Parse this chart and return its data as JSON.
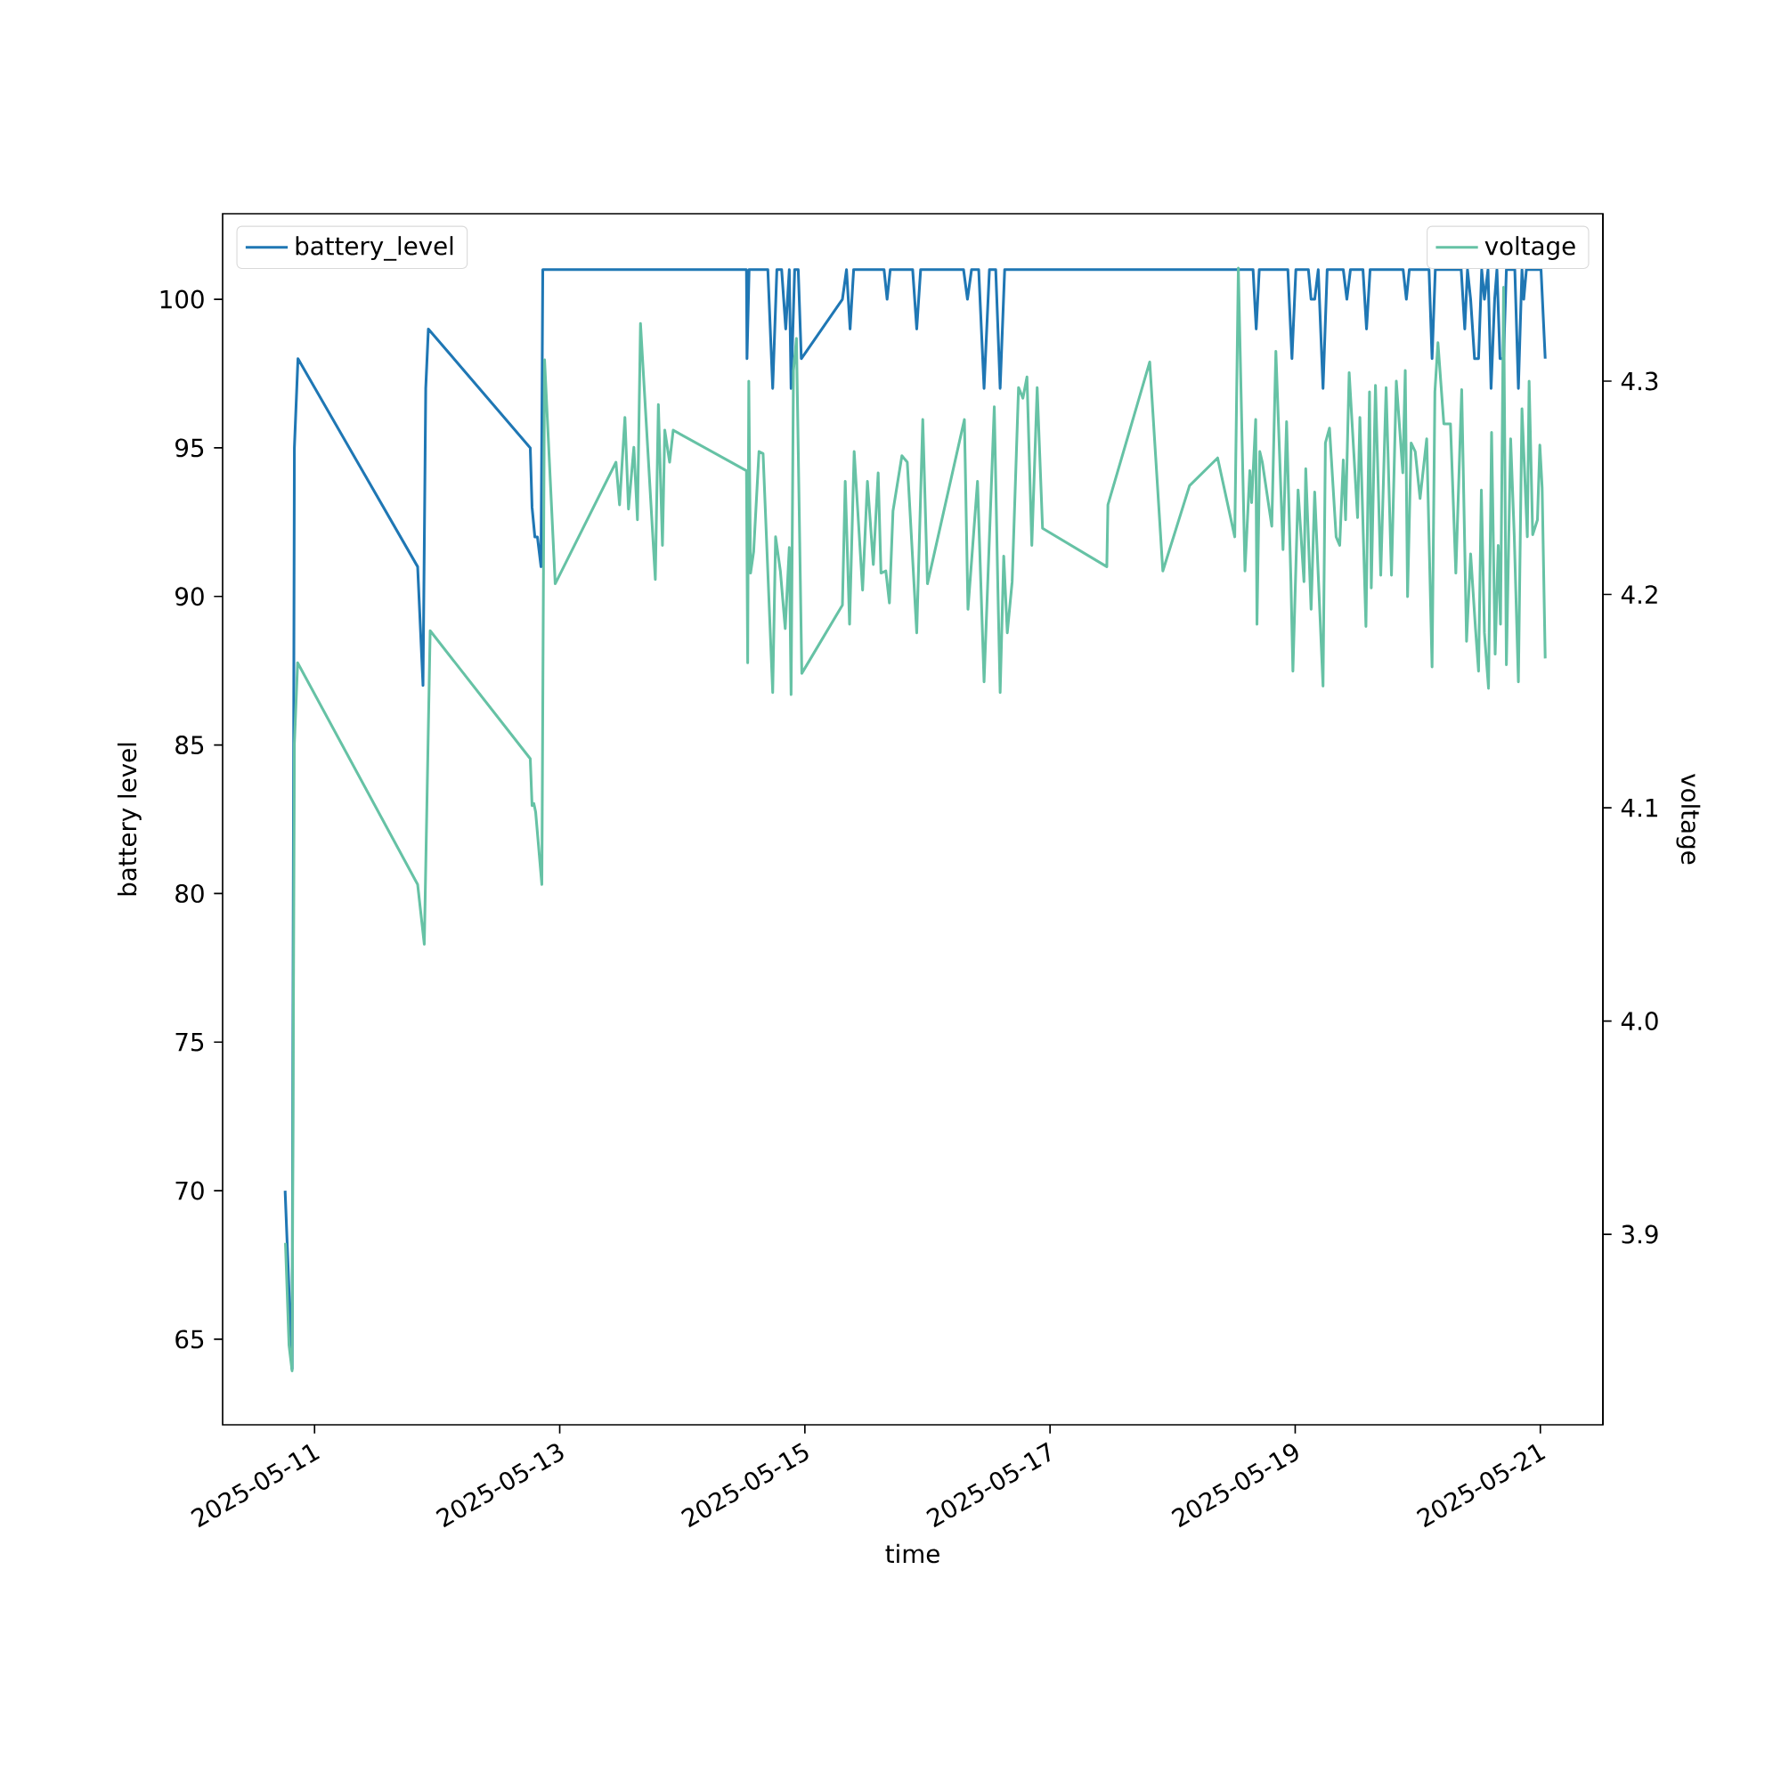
{
  "chart_data": {
    "type": "line",
    "xlabel": "time",
    "ylabel": "battery level",
    "y2label": "voltage",
    "legend": "top left",
    "xlim": [
      "2025-05-10T06:00",
      "2025-05-21T12:15"
    ],
    "xticks": [
      "2025-05-11",
      "2025-05-13",
      "2025-05-15",
      "2025-05-17",
      "2025-05-19",
      "2025-05-21"
    ],
    "ylim": [
      62.12,
      102.88
    ],
    "yticks": [
      65,
      70,
      75,
      80,
      85,
      90,
      95,
      100
    ],
    "y2lim": [
      3.8107,
      4.3785
    ],
    "y2ticks": [
      3.9,
      {
        "value": 4.0,
        "label": "4.0"
      },
      4.1,
      4.2,
      4.3
    ],
    "series": [
      {
        "name": "battery_level",
        "color": "#1f77b4",
        "x": [
          "2025-05-10T18:14",
          "2025-05-10T19:36",
          "2025-05-10T20:03",
          "2025-05-10T20:45",
          "2025-05-11T20:11",
          "2025-05-11T21:14",
          "2025-05-11T21:46",
          "2025-05-11T22:17",
          "2025-05-12T18:14",
          "2025-05-12T18:35",
          "2025-05-12T19:08",
          "2025-05-12T19:38",
          "2025-05-12T20:20",
          "2025-05-12T20:41",
          "2025-05-14T12:34",
          "2025-05-14T12:40",
          "2025-05-14T13:05",
          "2025-05-14T16:45",
          "2025-05-14T17:42",
          "2025-05-14T18:31",
          "2025-05-14T19:27",
          "2025-05-14T20:15",
          "2025-05-14T20:57",
          "2025-05-14T21:18",
          "2025-05-14T22:00",
          "2025-05-14T22:42",
          "2025-05-14T23:18",
          "2025-05-15T07:21",
          "2025-05-15T08:09",
          "2025-05-15T08:51",
          "2025-05-15T09:33",
          "2025-05-15T15:30",
          "2025-05-15T16:06",
          "2025-05-15T16:43",
          "2025-05-15T21:06",
          "2025-05-15T21:54",
          "2025-05-15T22:40",
          "2025-05-16T07:04",
          "2025-05-16T07:50",
          "2025-05-16T08:38",
          "2025-05-16T10:02",
          "2025-05-16T11:05",
          "2025-05-16T12:08",
          "2025-05-16T13:22",
          "2025-05-16T14:14",
          "2025-05-16T15:07",
          "2025-05-18T15:45",
          "2025-05-18T16:22",
          "2025-05-18T16:58",
          "2025-05-18T22:34",
          "2025-05-18T23:22",
          "2025-05-19T00:08",
          "2025-05-19T02:35",
          "2025-05-19T03:07",
          "2025-05-19T03:49",
          "2025-05-19T04:31",
          "2025-05-19T05:27",
          "2025-05-19T06:16",
          "2025-05-19T09:25",
          "2025-05-19T10:07",
          "2025-05-19T10:49",
          "2025-05-19T13:16",
          "2025-05-19T13:58",
          "2025-05-19T14:40",
          "2025-05-19T21:08",
          "2025-05-19T21:46",
          "2025-05-19T22:21",
          "2025-05-20T02:12",
          "2025-05-20T02:48",
          "2025-05-20T03:26",
          "2025-05-20T08:30",
          "2025-05-20T09:12",
          "2025-05-20T09:44",
          "2025-05-20T10:21",
          "2025-05-20T11:07",
          "2025-05-20T11:54",
          "2025-05-20T12:31",
          "2025-05-20T13:03",
          "2025-05-20T13:45",
          "2025-05-20T14:21",
          "2025-05-20T15:03",
          "2025-05-20T15:30",
          "2025-05-20T16:06",
          "2025-05-20T16:48",
          "2025-05-20T17:21",
          "2025-05-20T19:00",
          "2025-05-20T19:42",
          "2025-05-20T20:24",
          "2025-05-20T20:45",
          "2025-05-20T21:16",
          "2025-05-21T00:08",
          "2025-05-21T00:57"
        ],
        "values": [
          70,
          64,
          95,
          98,
          91,
          87,
          97,
          99,
          95,
          93,
          92,
          92,
          91,
          101,
          101,
          98,
          101,
          101,
          97,
          101,
          101,
          99,
          101,
          97,
          101,
          101,
          98,
          100,
          101,
          99,
          101,
          101,
          100,
          101,
          101,
          99,
          101,
          101,
          100,
          101,
          101,
          97,
          101,
          101,
          97,
          101,
          101,
          99,
          101,
          101,
          98,
          101,
          101,
          100,
          100,
          101,
          97,
          101,
          101,
          100,
          101,
          101,
          99,
          101,
          101,
          100,
          101,
          101,
          98,
          101,
          101,
          99,
          101,
          100,
          98,
          98,
          101,
          100,
          101,
          97,
          100,
          101,
          98,
          98,
          101,
          101,
          97,
          101,
          100,
          101,
          101,
          98
        ]
      },
      {
        "name": "voltage",
        "color": "#66c2a5",
        "axis": "y2",
        "x": [
          "2025-05-10T18:18",
          "2025-05-10T19:00",
          "2025-05-10T19:36",
          "2025-05-10T20:03",
          "2025-05-10T20:41",
          "2025-05-11T20:11",
          "2025-05-11T21:29",
          "2025-05-11T22:38",
          "2025-05-12T18:14",
          "2025-05-12T18:35",
          "2025-05-12T18:56",
          "2025-05-12T19:17",
          "2025-05-12T20:30",
          "2025-05-12T21:02",
          "2025-05-12T23:07",
          "2025-05-13T11:01",
          "2025-05-13T11:43",
          "2025-05-13T12:46",
          "2025-05-13T13:28",
          "2025-05-13T14:31",
          "2025-05-13T15:13",
          "2025-05-13T15:49",
          "2025-05-13T18:43",
          "2025-05-13T19:19",
          "2025-05-13T20:07",
          "2025-05-13T20:34",
          "2025-05-13T21:31",
          "2025-05-13T22:13",
          "2025-05-14T12:34",
          "2025-05-14T12:48",
          "2025-05-14T13:01",
          "2025-05-14T13:22",
          "2025-05-14T13:58",
          "2025-05-14T15:01",
          "2025-05-14T15:49",
          "2025-05-14T17:42",
          "2025-05-14T18:16",
          "2025-05-14T19:12",
          "2025-05-14T20:09",
          "2025-05-14T20:57",
          "2025-05-14T21:18",
          "2025-05-14T21:46",
          "2025-05-14T22:21",
          "2025-05-14T23:24",
          "2025-05-15T07:21",
          "2025-05-15T07:54",
          "2025-05-15T08:45",
          "2025-05-15T09:39",
          "2025-05-15T11:18",
          "2025-05-15T12:15",
          "2025-05-15T13:24",
          "2025-05-15T14:21",
          "2025-05-15T14:54",
          "2025-05-15T15:51",
          "2025-05-15T16:33",
          "2025-05-15T17:15",
          "2025-05-15T19:00",
          "2025-05-15T20:03",
          "2025-05-15T21:54",
          "2025-05-15T23:05",
          "2025-05-16T00:00",
          "2025-05-16T07:14",
          "2025-05-16T07:56",
          "2025-05-16T09:48",
          "2025-05-16T11:05",
          "2025-05-16T13:05",
          "2025-05-16T13:47",
          "2025-05-16T14:14",
          "2025-05-16T14:56",
          "2025-05-16T15:38",
          "2025-05-16T16:35",
          "2025-05-16T17:50",
          "2025-05-16T18:41",
          "2025-05-16T19:29",
          "2025-05-16T20:26",
          "2025-05-16T21:29",
          "2025-05-16T22:32",
          "2025-05-17T11:07",
          "2025-05-17T11:20",
          "2025-05-17T19:31",
          "2025-05-17T22:05",
          "2025-05-18T03:19",
          "2025-05-18T08:49",
          "2025-05-18T12:10",
          "2025-05-18T12:52",
          "2025-05-18T14:10",
          "2025-05-18T15:07",
          "2025-05-18T15:28",
          "2025-05-18T16:16",
          "2025-05-18T16:31",
          "2025-05-18T17:04",
          "2025-05-18T17:34",
          "2025-05-18T19:25",
          "2025-05-18T20:13",
          "2025-05-18T21:37",
          "2025-05-18T22:19",
          "2025-05-18T23:10",
          "2025-05-18T23:33",
          "2025-05-19T00:34",
          "2025-05-19T01:43",
          "2025-05-19T02:04",
          "2025-05-19T03:07",
          "2025-05-19T03:49",
          "2025-05-19T05:27",
          "2025-05-19T05:55",
          "2025-05-19T06:43",
          "2025-05-19T08:01",
          "2025-05-19T08:43",
          "2025-05-19T09:25",
          "2025-05-19T09:52",
          "2025-05-19T10:34",
          "2025-05-19T12:13",
          "2025-05-19T12:40",
          "2025-05-19T13:51",
          "2025-05-19T14:33",
          "2025-05-19T14:54",
          "2025-05-19T15:43",
          "2025-05-19T16:45",
          "2025-05-19T17:48",
          "2025-05-19T18:51",
          "2025-05-19T19:48",
          "2025-05-19T21:04",
          "2025-05-19T21:33",
          "2025-05-19T22:00",
          "2025-05-19T22:42",
          "2025-05-19T23:30",
          "2025-05-20T00:27",
          "2025-05-20T01:45",
          "2025-05-20T02:48",
          "2025-05-20T03:21",
          "2025-05-20T03:57",
          "2025-05-20T05:06",
          "2025-05-20T06:24",
          "2025-05-20T07:27",
          "2025-05-20T08:36",
          "2025-05-20T09:33",
          "2025-05-20T10:21",
          "2025-05-20T11:18",
          "2025-05-20T11:54",
          "2025-05-20T12:27",
          "2025-05-20T13:03",
          "2025-05-20T13:51",
          "2025-05-20T14:27",
          "2025-05-20T15:09",
          "2025-05-20T15:45",
          "2025-05-20T16:12",
          "2025-05-20T16:48",
          "2025-05-20T17:21",
          "2025-05-20T18:11",
          "2025-05-20T18:53",
          "2025-05-20T19:42",
          "2025-05-20T20:24",
          "2025-05-20T21:27",
          "2025-05-20T21:48",
          "2025-05-20T22:30",
          "2025-05-20T23:26",
          "2025-05-20T23:54",
          "2025-05-21T00:21",
          "2025-05-21T00:57"
        ],
        "values": [
          3.896,
          3.848,
          3.836,
          4.13,
          4.168,
          4.064,
          4.036,
          4.183,
          4.123,
          4.101,
          4.102,
          4.098,
          4.064,
          4.31,
          4.205,
          4.262,
          4.242,
          4.283,
          4.24,
          4.269,
          4.235,
          4.327,
          4.207,
          4.289,
          4.223,
          4.277,
          4.262,
          4.277,
          4.258,
          4.168,
          4.3,
          4.21,
          4.22,
          4.267,
          4.266,
          4.154,
          4.227,
          4.211,
          4.184,
          4.222,
          4.153,
          4.305,
          4.32,
          4.163,
          4.195,
          4.253,
          4.186,
          4.267,
          4.202,
          4.253,
          4.214,
          4.257,
          4.21,
          4.211,
          4.196,
          4.239,
          4.265,
          4.262,
          4.182,
          4.282,
          4.205,
          4.282,
          4.193,
          4.253,
          4.159,
          4.288,
          4.203,
          4.154,
          4.218,
          4.182,
          4.206,
          4.297,
          4.292,
          4.302,
          4.223,
          4.297,
          4.231,
          4.213,
          4.242,
          4.309,
          4.211,
          4.251,
          4.264,
          4.227,
          4.353,
          4.211,
          4.258,
          4.243,
          4.282,
          4.186,
          4.267,
          4.262,
          4.232,
          4.314,
          4.221,
          4.281,
          4.206,
          4.164,
          4.249,
          4.206,
          4.259,
          4.193,
          4.248,
          4.157,
          4.271,
          4.278,
          4.227,
          4.223,
          4.263,
          4.235,
          4.304,
          4.236,
          4.283,
          4.185,
          4.295,
          4.203,
          4.298,
          4.209,
          4.297,
          4.209,
          4.3,
          4.257,
          4.305,
          4.199,
          4.271,
          4.267,
          4.245,
          4.273,
          4.166,
          4.295,
          4.318,
          4.28,
          4.28,
          4.21,
          4.296,
          4.178,
          4.219,
          4.184,
          4.164,
          4.249,
          4.182,
          4.156,
          4.276,
          4.172,
          4.223,
          4.186,
          4.344,
          4.167,
          4.273,
          4.228,
          4.159,
          4.287,
          4.227,
          4.3,
          4.228,
          4.235,
          4.27,
          4.25,
          4.17
        ]
      }
    ]
  }
}
